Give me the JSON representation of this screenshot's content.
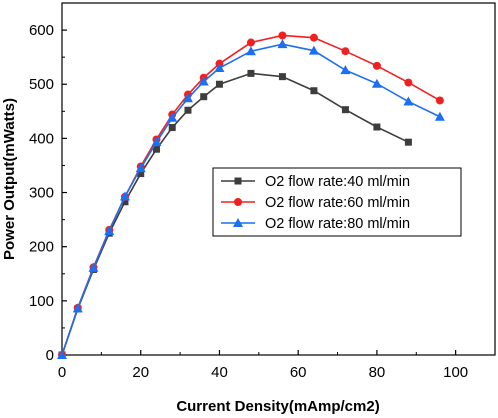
{
  "chart_data": {
    "type": "line",
    "xlabel": "Current Density(mAmp/cm2)",
    "ylabel": "Power Output(mWatts)",
    "xlim": [
      0,
      110
    ],
    "ylim": [
      0,
      650
    ],
    "xticks": [
      0,
      20,
      40,
      60,
      80,
      100
    ],
    "yticks": [
      0,
      100,
      200,
      300,
      400,
      500,
      600
    ],
    "xtick_labels": [
      "0",
      "20",
      "40",
      "60",
      "80",
      "100"
    ],
    "ytick_labels": [
      "0",
      "100",
      "200",
      "300",
      "400",
      "500",
      "600"
    ],
    "grid": false,
    "legend_position": "center-right",
    "series": [
      {
        "name": "O2 flow rate:40 ml/min",
        "color": "#3d3d3d",
        "marker": "square",
        "x": [
          0,
          4,
          8,
          12,
          16,
          20,
          24,
          28,
          32,
          36,
          40,
          48,
          56,
          64,
          72,
          80,
          88
        ],
        "y": [
          0,
          85,
          158,
          225,
          283,
          335,
          380,
          420,
          452,
          477,
          500,
          520,
          514,
          488,
          453,
          421,
          393
        ]
      },
      {
        "name": "O2 flow rate:60 ml/min",
        "color": "#f02020",
        "marker": "circle",
        "x": [
          0,
          4,
          8,
          12,
          16,
          20,
          24,
          28,
          32,
          36,
          40,
          48,
          56,
          64,
          72,
          80,
          88,
          96
        ],
        "y": [
          0,
          87,
          162,
          231,
          292,
          348,
          398,
          444,
          481,
          512,
          538,
          577,
          590,
          586,
          561,
          534,
          503,
          470
        ]
      },
      {
        "name": "O2 flow rate:80 ml/min",
        "color": "#1c6ff0",
        "marker": "triangle",
        "x": [
          0,
          4,
          8,
          12,
          16,
          20,
          24,
          28,
          32,
          36,
          40,
          48,
          56,
          64,
          72,
          80,
          88,
          96
        ],
        "y": [
          0,
          86,
          161,
          229,
          293,
          345,
          393,
          438,
          474,
          505,
          530,
          561,
          574,
          562,
          526,
          501,
          468,
          440
        ]
      }
    ]
  }
}
